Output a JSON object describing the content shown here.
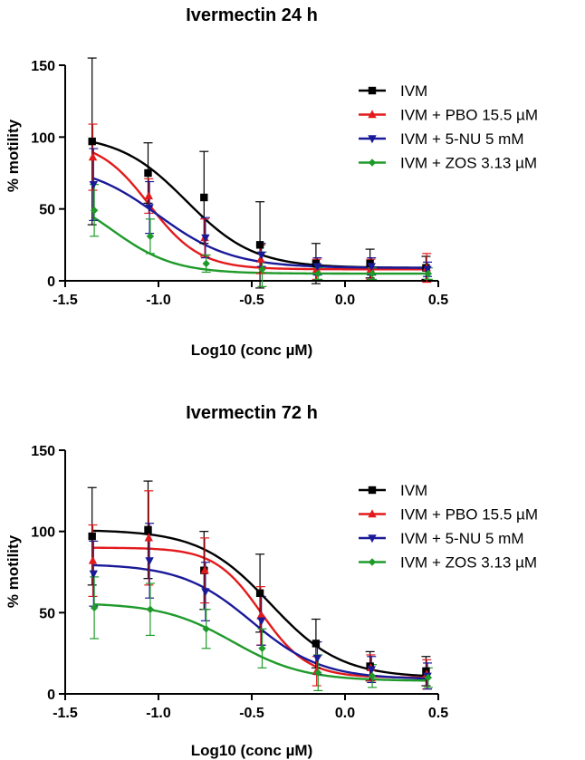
{
  "chart_data": [
    {
      "type": "line",
      "title": "Ivermectin 24 h",
      "xlabel": "Log10 (conc µM)",
      "ylabel": "% motility",
      "xlim": [
        -1.5,
        0.5
      ],
      "ylim": [
        0,
        150
      ],
      "xticks": [
        "-1.5",
        "-1.0",
        "-0.5",
        "0.0",
        "0.5"
      ],
      "yticks": [
        "0",
        "50",
        "100",
        "150"
      ],
      "x": [
        -1.35,
        -1.05,
        -0.75,
        -0.45,
        -0.15,
        0.14,
        0.44
      ],
      "series": [
        {
          "name": "IVM",
          "color": "#000000",
          "marker": "square",
          "values": [
            97,
            75,
            58,
            25,
            12,
            12,
            9
          ],
          "errors": [
            58,
            21,
            32,
            30,
            14,
            10,
            8
          ],
          "fit": {
            "bottom": 9,
            "top": 102,
            "ec50": -0.85,
            "hill": 2.4
          }
        },
        {
          "name": "IVM + PBO 15.5 µM",
          "color": "#e31a1c",
          "marker": "triangle-up",
          "values": [
            86,
            59,
            30,
            15,
            8,
            8,
            9
          ],
          "errors": [
            23,
            12,
            13,
            10,
            7,
            7,
            10
          ],
          "fit": {
            "bottom": 8,
            "top": 98,
            "ec50": -1.05,
            "hill": 3.2
          }
        },
        {
          "name": "IVM + 5-NU 5 mM",
          "color": "#1a1a99",
          "marker": "triangle-down",
          "values": [
            67,
            51,
            30,
            18,
            10,
            10,
            8
          ],
          "errors": [
            25,
            18,
            14,
            8,
            6,
            6,
            5
          ],
          "fit": {
            "bottom": 9,
            "top": 82,
            "ec50": -1.0,
            "hill": 2.2
          }
        },
        {
          "name": "IVM + ZOS 3.13 µM",
          "color": "#1f9a2a",
          "marker": "diamond",
          "values": [
            49,
            31,
            12,
            8,
            5,
            5,
            5
          ],
          "errors": [
            18,
            12,
            6,
            12,
            4,
            4,
            4
          ],
          "fit": {
            "bottom": 5,
            "top": 66,
            "ec50": -1.25,
            "hill": 2.6
          }
        }
      ]
    },
    {
      "type": "line",
      "title": "Ivermectin 72 h",
      "xlabel": "Log10 (conc µM)",
      "ylabel": "% motility",
      "xlim": [
        -1.5,
        0.5
      ],
      "ylim": [
        0,
        150
      ],
      "xticks": [
        "-1.5",
        "-1.0",
        "-0.5",
        "0.0",
        "0.5"
      ],
      "yticks": [
        "0",
        "50",
        "100",
        "150"
      ],
      "x": [
        -1.35,
        -1.05,
        -0.75,
        -0.45,
        -0.15,
        0.14,
        0.44
      ],
      "series": [
        {
          "name": "IVM",
          "color": "#000000",
          "marker": "square",
          "values": [
            97,
            101,
            76,
            62,
            31,
            17,
            14
          ],
          "errors": [
            30,
            30,
            24,
            24,
            15,
            9,
            9
          ],
          "fit": {
            "bottom": 10,
            "top": 101,
            "ec50": -0.4,
            "hill": 2.3
          }
        },
        {
          "name": "IVM + PBO 15.5 µM",
          "color": "#e31a1c",
          "marker": "triangle-up",
          "values": [
            82,
            96,
            76,
            48,
            14,
            16,
            12
          ],
          "errors": [
            22,
            29,
            20,
            18,
            9,
            8,
            9
          ],
          "fit": {
            "bottom": 10,
            "top": 90,
            "ec50": -0.45,
            "hill": 3.5
          }
        },
        {
          "name": "IVM + 5-NU 5 mM",
          "color": "#1a1a99",
          "marker": "triangle-down",
          "values": [
            74,
            82,
            63,
            45,
            22,
            15,
            11
          ],
          "errors": [
            20,
            23,
            18,
            15,
            10,
            8,
            8
          ],
          "fit": {
            "bottom": 9,
            "top": 80,
            "ec50": -0.5,
            "hill": 2.3
          }
        },
        {
          "name": "IVM + ZOS 3.13 µM",
          "color": "#1f9a2a",
          "marker": "diamond",
          "values": [
            53,
            52,
            40,
            28,
            13,
            11,
            10
          ],
          "errors": [
            19,
            16,
            12,
            12,
            11,
            7,
            6
          ],
          "fit": {
            "bottom": 8,
            "top": 56,
            "ec50": -0.6,
            "hill": 2.3
          }
        }
      ]
    }
  ]
}
